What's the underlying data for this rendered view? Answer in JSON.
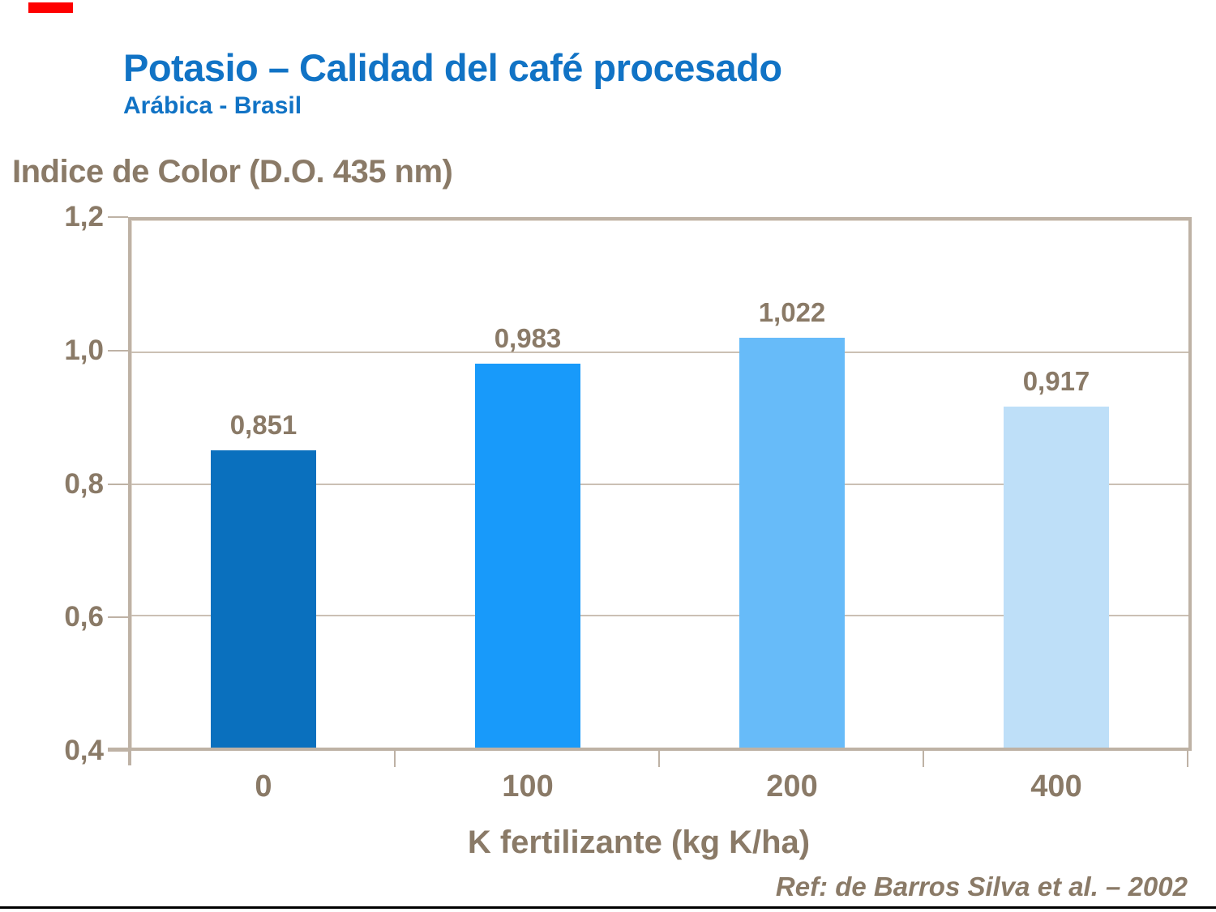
{
  "slide": {
    "title": "Potasio – Calidad del café procesado",
    "subtitle": "Arábica - Brasil",
    "reference": "Ref: de Barros Silva et al. – 2002"
  },
  "colors": {
    "title_blue": "#1173C5",
    "text_brown": "#8A7A67",
    "axis_tan": "#BEB2A5",
    "grid_tan": "#CBC0B4",
    "logo_red": "#FE0000",
    "bottom_rule": "#000000"
  },
  "chart_data": {
    "type": "bar",
    "title": "Indice de Color (D.O. 435 nm)",
    "ylabel": "Indice de Color (D.O. 435 nm)",
    "xlabel": "K fertilizante (kg K/ha)",
    "categories": [
      "0",
      "100",
      "200",
      "400"
    ],
    "values": [
      0.851,
      0.983,
      1.022,
      0.917
    ],
    "value_labels": [
      "0,851",
      "0,983",
      "1,022",
      "0,917"
    ],
    "bar_colors": [
      "#0A70BE",
      "#189AFA",
      "#67BBF9",
      "#BEDFF8"
    ],
    "ylim": [
      0.4,
      1.2
    ],
    "yticks": [
      1.2,
      1.0,
      0.8,
      0.6,
      0.4
    ],
    "ytick_labels": [
      "1,2",
      "1,0",
      "0,8",
      "0,6",
      "0,4"
    ],
    "gridlines_at": [
      1.0,
      0.8,
      0.6
    ],
    "grid": true,
    "legend_position": "none"
  }
}
